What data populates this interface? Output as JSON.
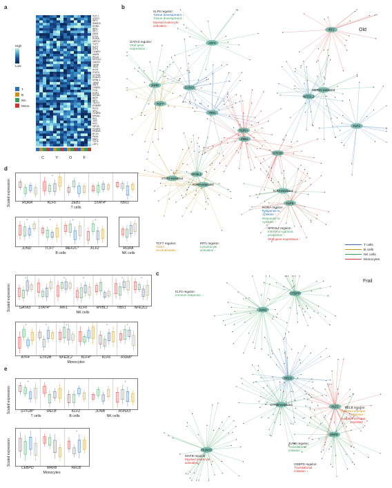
{
  "panels": {
    "a": "a",
    "b": "b",
    "c": "c",
    "d": "d",
    "e": "e"
  },
  "heatmap": {
    "legend_high": "High",
    "legend_low": "Low",
    "columns": [
      "C",
      "Y",
      "O",
      "F"
    ],
    "genes": [
      "IKZF1",
      "STAT3",
      "IRF2",
      "SMAD3",
      "RXRA",
      "IRF8",
      "IRF1",
      "ZEB1",
      "ETS1",
      "RORA",
      "MEF2C",
      "TCF7",
      "KLF2",
      "ATF4",
      "CEBPD",
      "MAFB",
      "RELB",
      "NFE2L2",
      "GATA3",
      "JUNB",
      "YBX1",
      "KLF6",
      "STAT4",
      "GTF2B",
      "RUNX3",
      "MYBL1",
      "JUND",
      "XBP1",
      "CREB1",
      "FOS",
      "EGR1",
      "NFKB1",
      "BATF",
      "IRF4",
      "TBX21",
      "EOMES",
      "KLF4",
      "SPI1",
      "CEBPB",
      "NR4A1",
      "REL",
      "JUN",
      "MYC",
      "HIF1A",
      "FOXP3",
      "PRDM1",
      "BCL6",
      "PAX5",
      "EBF1",
      "TCF4",
      "LEF1"
    ],
    "cell_types": [
      {
        "label": "T",
        "color": "#2f6db3"
      },
      {
        "label": "B",
        "color": "#c8921d"
      },
      {
        "label": "NK",
        "color": "#3c9c60"
      },
      {
        "label": "Mono.",
        "color": "#d0352f"
      }
    ]
  },
  "network_b": {
    "title": "Old",
    "klf6": {
      "head": "KLF6 regulon:",
      "l1": "Tissue development ↓",
      "l2": "Tissue development ↑",
      "l3": "Myeloid leukocyte",
      "l4": "activation ↑"
    },
    "gata3": {
      "head": "GATA3 regulon:",
      "l1": "Viral gene",
      "l2": "expression ↓"
    },
    "rora": {
      "head": "RORA regulon",
      "l1": "Response to",
      "l2": "cytokine ↑",
      "l3": "Response to",
      "l4": "cytokine ↑"
    },
    "nfe2l2": {
      "head": "NFE2L2 regulon:",
      "l1": "Interferon-gamma",
      "l2": "production ↑",
      "l3": "Viral gene expression ↑"
    },
    "tcf7": {
      "head": "TCF7 regulon:",
      "l1": "V(D)J",
      "l2": "recombination ↑"
    },
    "irf1": {
      "head": "IRF1 regulon:",
      "l1": "Lymphocyte",
      "l2": "activation ↑"
    },
    "hubs": [
      "KLF6",
      "ATF4",
      "MYBL1",
      "GATA3",
      "MEF2C-extended",
      "KLF4-extended",
      "KLF2",
      "YBX1",
      "ZEB1",
      "RORA-extended",
      "STAT4-extended",
      "JUND",
      "RORA",
      "GTF2B",
      "NFE2L2",
      "IRF1",
      "TCF7"
    ],
    "legend": [
      {
        "label": "T cells",
        "color": "#2f6db3"
      },
      {
        "label": "B cells",
        "color": "#c8921d"
      },
      {
        "label": "NK cells",
        "color": "#3c9c60"
      },
      {
        "label": "Monocytes",
        "color": "#d0352f"
      }
    ]
  },
  "network_c": {
    "title": "Frail",
    "klf2": {
      "head": "KLF2 regulon:",
      "l1": "Immune response ↓"
    },
    "relb": {
      "head": "RELB regulon:",
      "l1": "Adaptive immune",
      "l2": "response ↑",
      "l3": "Adaptive immune",
      "l4": "response ↓"
    },
    "junb": {
      "head": "JUNB regulon:",
      "l1": "Translational",
      "l2": "initiation ↑"
    },
    "mafb": {
      "head": "MAFB regulon:",
      "l1": "Myeloid leukocyte",
      "l2": "activation ↑"
    },
    "cebpd": {
      "head": "CEBPD regulon:",
      "l1": "Translational",
      "l2": "initiation ↓"
    },
    "hubs": [
      "RUNX3",
      "KLF2",
      "RELB",
      "GTF2B-extended",
      "JUNB",
      "CEBPD",
      "MAFB"
    ]
  },
  "panel_d": {
    "ylabel": "Scaled expression",
    "row1": {
      "genes": [
        "RORA",
        "KLF6",
        "ZEB1",
        "STAT4*",
        "YBX1"
      ],
      "caption": "T cells"
    },
    "row2a": {
      "genes": [
        "JUND",
        "TCF7",
        "MEF2C*",
        "KLF2"
      ],
      "caption": "B cells"
    },
    "row2b": {
      "genes": [
        "RORA"
      ],
      "caption": "NK cells"
    },
    "row3": {
      "genes": [
        "GATA3",
        "STAT4*",
        "IRF1",
        "KLF6",
        "MYBL1",
        "YBX1",
        "NFE2L2"
      ],
      "caption": "NK cells"
    },
    "row4": {
      "genes": [
        "ATF4",
        "GTF2B",
        "NFE2L2",
        "KLF4*",
        "KLF6",
        "RXRA*"
      ],
      "caption": "Monocytes"
    }
  },
  "panel_e": {
    "ylabel": "Scaled expression",
    "row1": {
      "genes": [
        "GTF2B*",
        "RELB",
        "KLF2",
        "JUNB",
        "RUNX3"
      ],
      "captions": [
        "T cells",
        "B cells",
        "NK cells"
      ]
    },
    "row2": {
      "genes": [
        "CEBPD",
        "MAFB",
        "RELB"
      ],
      "caption": "Monocytes"
    }
  }
}
